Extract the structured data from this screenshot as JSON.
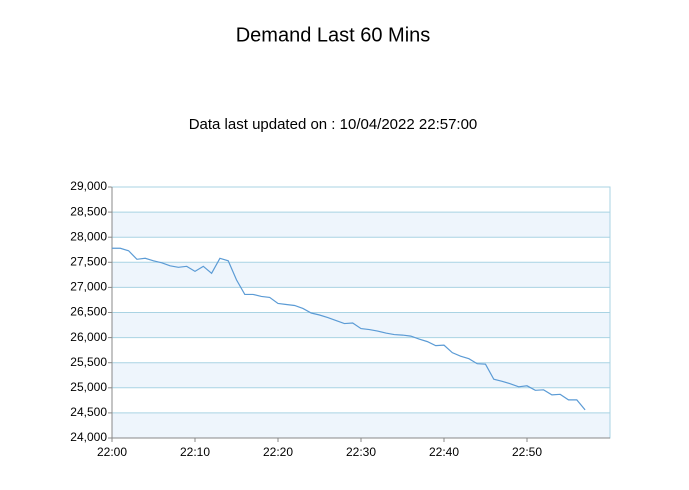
{
  "chart_data": {
    "type": "line",
    "title": "Demand Last 60 Mins",
    "subtitle": "Data last updated on : 10/04/2022 22:57:00",
    "x": [
      0,
      1,
      2,
      3,
      4,
      5,
      6,
      7,
      8,
      9,
      10,
      11,
      12,
      13,
      14,
      15,
      16,
      17,
      18,
      19,
      20,
      21,
      22,
      23,
      24,
      25,
      26,
      27,
      28,
      29,
      30,
      31,
      32,
      33,
      34,
      35,
      36,
      37,
      38,
      39,
      40,
      41,
      42,
      43,
      44,
      45,
      46,
      47,
      48,
      49,
      50,
      51,
      52,
      53,
      54,
      55,
      56,
      57
    ],
    "series": [
      {
        "color": "#5b9bd5",
        "values": [
          27780,
          27780,
          27730,
          27560,
          27580,
          27530,
          27490,
          27430,
          27400,
          27420,
          27320,
          27420,
          27280,
          27580,
          27530,
          27150,
          26860,
          26860,
          26820,
          26800,
          26680,
          26660,
          26640,
          26580,
          26490,
          26450,
          26400,
          26340,
          26280,
          26290,
          26180,
          26160,
          26130,
          26090,
          26060,
          26050,
          26030,
          25970,
          25920,
          25840,
          25850,
          25700,
          25630,
          25580,
          25480,
          25470,
          25170,
          25130,
          25080,
          25020,
          25040,
          24950,
          24960,
          24860,
          24870,
          24760,
          24760,
          24560
        ]
      }
    ],
    "xlim": [
      0,
      60
    ],
    "xticks": [
      {
        "value": 0,
        "label": "22:00"
      },
      {
        "value": 10,
        "label": "22:10"
      },
      {
        "value": 20,
        "label": "22:20"
      },
      {
        "value": 30,
        "label": "22:30"
      },
      {
        "value": 40,
        "label": "22:40"
      },
      {
        "value": 50,
        "label": "22:50"
      }
    ],
    "ylim": [
      24000,
      29000
    ],
    "yticks": [
      {
        "value": 24000,
        "label": "24,000"
      },
      {
        "value": 24500,
        "label": "24,500"
      },
      {
        "value": 25000,
        "label": "25,000"
      },
      {
        "value": 25500,
        "label": "25,500"
      },
      {
        "value": 26000,
        "label": "26,000"
      },
      {
        "value": 26500,
        "label": "26,500"
      },
      {
        "value": 27000,
        "label": "27,000"
      },
      {
        "value": 27500,
        "label": "27,500"
      },
      {
        "value": 28000,
        "label": "28,000"
      },
      {
        "value": 28500,
        "label": "28,500"
      },
      {
        "value": 29000,
        "label": "29,000"
      }
    ],
    "grid": true,
    "band_color": "#eef5fc",
    "grid_color": "#a9d3e3"
  }
}
